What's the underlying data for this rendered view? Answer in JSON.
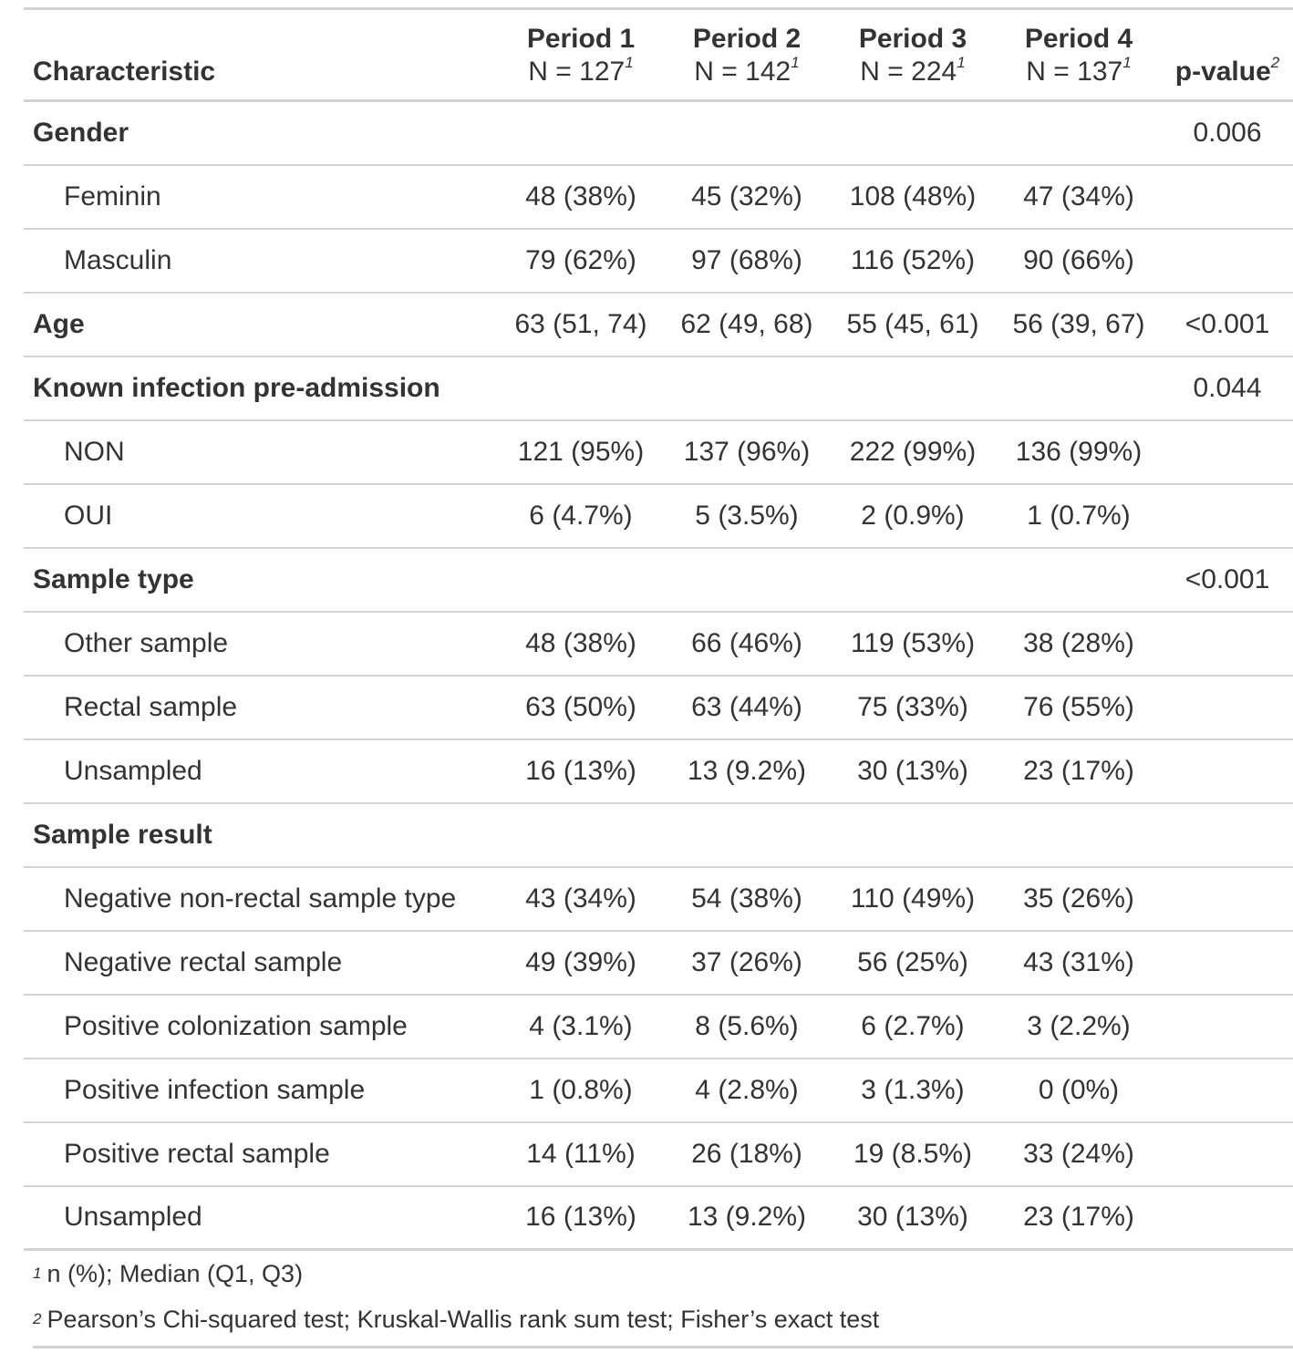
{
  "table": {
    "header": {
      "characteristic": "Characteristic",
      "columns": [
        {
          "label": "Period 1",
          "n": "N = 127",
          "mark": "1"
        },
        {
          "label": "Period 2",
          "n": "N = 142",
          "mark": "1"
        },
        {
          "label": "Period 3",
          "n": "N = 224",
          "mark": "1"
        },
        {
          "label": "Period 4",
          "n": "N = 137",
          "mark": "1"
        }
      ],
      "pvalue": "p-value",
      "pvalue_mark": "2"
    },
    "rows": [
      {
        "label": "Gender",
        "type": "group",
        "values": [
          "",
          "",
          "",
          ""
        ],
        "p": "0.006"
      },
      {
        "label": "Feminin",
        "type": "sub",
        "values": [
          "48 (38%)",
          "45 (32%)",
          "108 (48%)",
          "47 (34%)"
        ],
        "p": ""
      },
      {
        "label": "Masculin",
        "type": "sub",
        "values": [
          "79 (62%)",
          "97 (68%)",
          "116 (52%)",
          "90 (66%)"
        ],
        "p": ""
      },
      {
        "label": "Age",
        "type": "group",
        "values": [
          "63 (51, 74)",
          "62 (49, 68)",
          "55 (45, 61)",
          "56 (39, 67)"
        ],
        "p": "<0.001"
      },
      {
        "label": "Known infection pre-admission",
        "type": "group",
        "values": [
          "",
          "",
          "",
          ""
        ],
        "p": "0.044"
      },
      {
        "label": "NON",
        "type": "sub",
        "values": [
          "121 (95%)",
          "137 (96%)",
          "222 (99%)",
          "136 (99%)"
        ],
        "p": ""
      },
      {
        "label": "OUI",
        "type": "sub",
        "values": [
          "6 (4.7%)",
          "5 (3.5%)",
          "2 (0.9%)",
          "1 (0.7%)"
        ],
        "p": ""
      },
      {
        "label": "Sample type",
        "type": "group",
        "values": [
          "",
          "",
          "",
          ""
        ],
        "p": "<0.001"
      },
      {
        "label": "Other sample",
        "type": "sub",
        "values": [
          "48 (38%)",
          "66 (46%)",
          "119 (53%)",
          "38 (28%)"
        ],
        "p": ""
      },
      {
        "label": "Rectal sample",
        "type": "sub",
        "values": [
          "63 (50%)",
          "63 (44%)",
          "75 (33%)",
          "76 (55%)"
        ],
        "p": ""
      },
      {
        "label": "Unsampled",
        "type": "sub",
        "values": [
          "16 (13%)",
          "13 (9.2%)",
          "30 (13%)",
          "23 (17%)"
        ],
        "p": ""
      },
      {
        "label": "Sample result",
        "type": "group",
        "values": [
          "",
          "",
          "",
          ""
        ],
        "p": ""
      },
      {
        "label": "Negative non-rectal sample type",
        "type": "sub",
        "values": [
          "43 (34%)",
          "54 (38%)",
          "110 (49%)",
          "35 (26%)"
        ],
        "p": ""
      },
      {
        "label": "Negative rectal sample",
        "type": "sub",
        "values": [
          "49 (39%)",
          "37 (26%)",
          "56 (25%)",
          "43 (31%)"
        ],
        "p": ""
      },
      {
        "label": "Positive colonization sample",
        "type": "sub",
        "values": [
          "4 (3.1%)",
          "8 (5.6%)",
          "6 (2.7%)",
          "3 (2.2%)"
        ],
        "p": ""
      },
      {
        "label": "Positive infection sample",
        "type": "sub",
        "values": [
          "1 (0.8%)",
          "4 (2.8%)",
          "3 (1.3%)",
          "0 (0%)"
        ],
        "p": ""
      },
      {
        "label": "Positive rectal sample",
        "type": "sub",
        "values": [
          "14 (11%)",
          "26 (18%)",
          "19 (8.5%)",
          "33 (24%)"
        ],
        "p": ""
      },
      {
        "label": "Unsampled",
        "type": "sub",
        "values": [
          "16 (13%)",
          "13 (9.2%)",
          "30 (13%)",
          "23 (17%)"
        ],
        "p": ""
      }
    ],
    "footnotes": [
      {
        "mark": "1",
        "text": "n (%); Median (Q1, Q3)"
      },
      {
        "mark": "2",
        "text": "Pearson’s Chi-squared test; Kruskal-Wallis rank sum test; Fisher’s exact test"
      }
    ]
  }
}
